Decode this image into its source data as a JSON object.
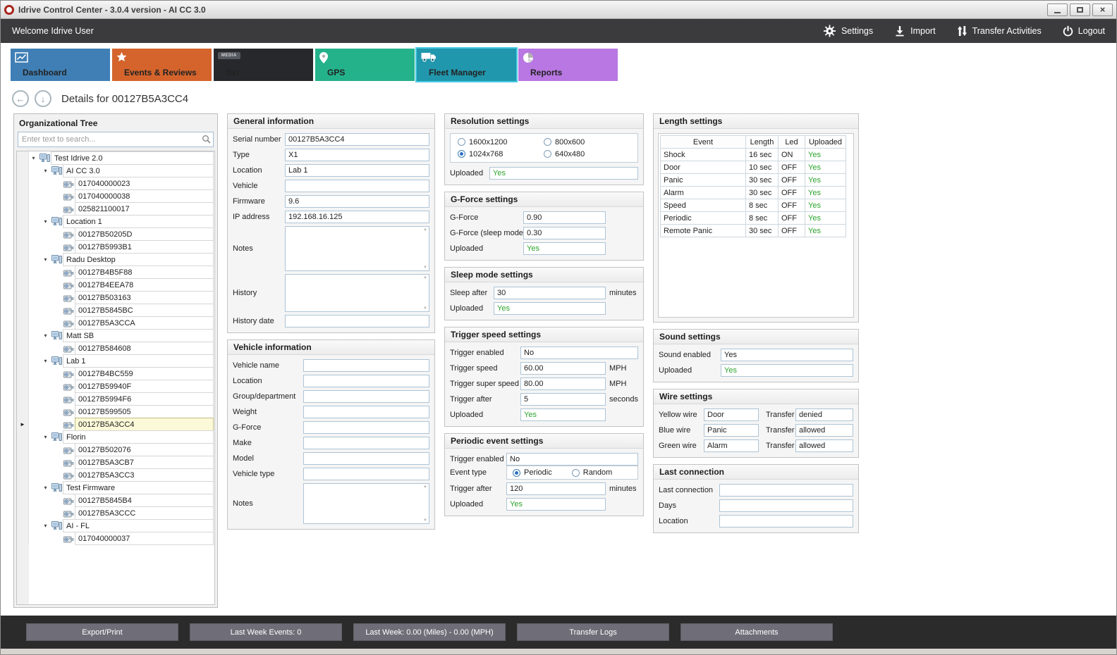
{
  "window": {
    "title": "Idrive Control Center - 3.0.4 version - AI CC 3.0",
    "close_glyph": "×"
  },
  "menubar": {
    "welcome": "Welcome Idrive User",
    "actions": [
      {
        "id": "settings",
        "label": "Settings"
      },
      {
        "id": "import",
        "label": "Import"
      },
      {
        "id": "transfer-activities",
        "label": "Transfer Activities"
      },
      {
        "id": "logout",
        "label": "Logout"
      }
    ]
  },
  "tabs": [
    {
      "id": "dashboard",
      "label": "Dashboard",
      "color": "#3f7fb5",
      "selected": false
    },
    {
      "id": "events-reviews",
      "label": "Events & Reviews",
      "color": "#d4642c",
      "selected": false
    },
    {
      "id": "dvr",
      "label": "Dvr",
      "color": "#26282c",
      "selected": false,
      "logo_text": "MEDIA"
    },
    {
      "id": "gps",
      "label": "GPS",
      "color": "#24b28b",
      "selected": false
    },
    {
      "id": "fleet-manager",
      "label": "Fleet Manager",
      "color": "#2197ad",
      "selected": true
    },
    {
      "id": "reports",
      "label": "Reports",
      "color": "#b877e2",
      "selected": false
    }
  ],
  "details_header": {
    "title": "Details for 00127B5A3CC4"
  },
  "org_tree": {
    "title": "Organizational Tree",
    "search_placeholder": "Enter text to search...",
    "nodes": [
      {
        "label": "Test Idrive 2.0",
        "level": 0,
        "type": "group"
      },
      {
        "label": "AI CC 3.0",
        "level": 1,
        "type": "group"
      },
      {
        "label": "017040000023",
        "level": 2,
        "type": "device"
      },
      {
        "label": "017040000038",
        "level": 2,
        "type": "device"
      },
      {
        "label": "025821100017",
        "level": 2,
        "type": "device"
      },
      {
        "label": "Location 1",
        "level": 1,
        "type": "group"
      },
      {
        "label": "00127B50205D",
        "level": 2,
        "type": "device"
      },
      {
        "label": "00127B5993B1",
        "level": 2,
        "type": "device"
      },
      {
        "label": "Radu Desktop",
        "level": 1,
        "type": "group"
      },
      {
        "label": "00127B4B5F88",
        "level": 2,
        "type": "device"
      },
      {
        "label": "00127B4EEA78",
        "level": 2,
        "type": "device"
      },
      {
        "label": "00127B503163",
        "level": 2,
        "type": "device"
      },
      {
        "label": "00127B5845BC",
        "level": 2,
        "type": "device"
      },
      {
        "label": "00127B5A3CCA",
        "level": 2,
        "type": "device"
      },
      {
        "label": "Matt SB",
        "level": 1,
        "type": "group"
      },
      {
        "label": "00127B584608",
        "level": 2,
        "type": "device"
      },
      {
        "label": "Lab 1",
        "level": 1,
        "type": "group"
      },
      {
        "label": "00127B4BC559",
        "level": 2,
        "type": "device"
      },
      {
        "label": "00127B59940F",
        "level": 2,
        "type": "device"
      },
      {
        "label": "00127B5994F6",
        "level": 2,
        "type": "device"
      },
      {
        "label": "00127B599505",
        "level": 2,
        "type": "device"
      },
      {
        "label": "00127B5A3CC4",
        "level": 2,
        "type": "device",
        "selected": true
      },
      {
        "label": "Florin",
        "level": 1,
        "type": "group"
      },
      {
        "label": "00127B502076",
        "level": 2,
        "type": "device"
      },
      {
        "label": "00127B5A3CB7",
        "level": 2,
        "type": "device"
      },
      {
        "label": "00127B5A3CC3",
        "level": 2,
        "type": "device"
      },
      {
        "label": "Test Firmware",
        "level": 1,
        "type": "group"
      },
      {
        "label": "00127B5845B4",
        "level": 2,
        "type": "device"
      },
      {
        "label": "00127B5A3CCC",
        "level": 2,
        "type": "device"
      },
      {
        "label": "AI - FL",
        "level": 1,
        "type": "group"
      },
      {
        "label": "017040000037",
        "level": 2,
        "type": "device"
      }
    ]
  },
  "general_information": {
    "title": "General information",
    "fields": [
      {
        "label": "Serial number",
        "value": "00127B5A3CC4"
      },
      {
        "label": "Type",
        "value": "X1"
      },
      {
        "label": "Location",
        "value": "Lab 1"
      },
      {
        "label": "Vehicle",
        "value": ""
      },
      {
        "label": "Firmware",
        "value": "9.6"
      },
      {
        "label": "IP address",
        "value": "192.168.16.125"
      },
      {
        "label": "Notes",
        "value": "",
        "multiline": true
      },
      {
        "label": "History",
        "value": "",
        "multiline": true
      },
      {
        "label": "History date",
        "value": ""
      }
    ]
  },
  "vehicle_information": {
    "title": "Vehicle information",
    "fields": [
      {
        "label": "Vehicle name",
        "value": ""
      },
      {
        "label": "Location",
        "value": ""
      },
      {
        "label": "Group/department",
        "value": ""
      },
      {
        "label": "Weight",
        "value": ""
      },
      {
        "label": "G-Force",
        "value": ""
      },
      {
        "label": "Make",
        "value": ""
      },
      {
        "label": "Model",
        "value": ""
      },
      {
        "label": "Vehicle type",
        "value": ""
      },
      {
        "label": "Notes",
        "value": "",
        "multiline": true
      }
    ]
  },
  "resolution_settings": {
    "title": "Resolution settings",
    "options": [
      {
        "label": "1600x1200",
        "selected": false
      },
      {
        "label": "800x600",
        "selected": false
      },
      {
        "label": "1024x768",
        "selected": true
      },
      {
        "label": "640x480",
        "selected": false
      }
    ],
    "fields": [
      {
        "label": "Uploaded",
        "value": "Yes",
        "green": true
      }
    ]
  },
  "gforce_settings": {
    "title": "G-Force settings",
    "fields": [
      {
        "label": "G-Force",
        "value": "0.90"
      },
      {
        "label": "G-Force (sleep mode)",
        "value": "0.30"
      },
      {
        "label": "Uploaded",
        "value": "Yes",
        "green": true
      }
    ]
  },
  "sleep_mode_settings": {
    "title": "Sleep mode settings",
    "fields": [
      {
        "label": "Sleep after",
        "value": "30",
        "suffix": "minutes"
      },
      {
        "label": "Uploaded",
        "value": "Yes",
        "green": true
      }
    ]
  },
  "trigger_speed_settings": {
    "title": "Trigger speed settings",
    "fields": [
      {
        "label": "Trigger enabled",
        "value": "No"
      },
      {
        "label": "Trigger speed",
        "value": "60.00",
        "suffix": "MPH"
      },
      {
        "label": "Trigger super speed",
        "value": "80.00",
        "suffix": "MPH"
      },
      {
        "label": "Trigger after",
        "value": "5",
        "suffix": "seconds"
      },
      {
        "label": "Uploaded",
        "value": "Yes",
        "green": true
      }
    ]
  },
  "periodic_event_settings": {
    "title": "Periodic event settings",
    "fields_top": [
      {
        "label": "Trigger enabled",
        "value": "No"
      }
    ],
    "event_type": {
      "label": "Event type",
      "options": [
        {
          "label": "Periodic",
          "selected": true
        },
        {
          "label": "Random",
          "selected": false
        }
      ]
    },
    "fields_bottom": [
      {
        "label": "Trigger after",
        "value": "120",
        "suffix": "minutes"
      },
      {
        "label": "Uploaded",
        "value": "Yes",
        "green": true
      }
    ]
  },
  "length_settings": {
    "title": "Length settings",
    "columns": [
      "Event",
      "Length",
      "Led",
      "Uploaded"
    ],
    "rows": [
      [
        "Shock",
        "16 sec",
        "ON",
        "Yes"
      ],
      [
        "Door",
        "10 sec",
        "OFF",
        "Yes"
      ],
      [
        "Panic",
        "30 sec",
        "OFF",
        "Yes"
      ],
      [
        "Alarm",
        "30 sec",
        "OFF",
        "Yes"
      ],
      [
        "Speed",
        "8 sec",
        "OFF",
        "Yes"
      ],
      [
        "Periodic",
        "8 sec",
        "OFF",
        "Yes"
      ],
      [
        "Remote Panic",
        "30 sec",
        "OFF",
        "Yes"
      ]
    ]
  },
  "sound_settings": {
    "title": "Sound settings",
    "fields": [
      {
        "label": "Sound enabled",
        "value": "Yes"
      },
      {
        "label": "Uploaded",
        "value": "Yes",
        "green": true
      }
    ]
  },
  "wire_settings": {
    "title": "Wire settings",
    "rows": [
      {
        "label": "Yellow wire",
        "value": "Door",
        "transfer_label": "Transfer",
        "transfer_value": "denied"
      },
      {
        "label": "Blue wire",
        "value": "Panic",
        "transfer_label": "Transfer",
        "transfer_value": "allowed"
      },
      {
        "label": "Green wire",
        "value": "Alarm",
        "transfer_label": "Transfer",
        "transfer_value": "allowed"
      }
    ]
  },
  "last_connection": {
    "title": "Last connection",
    "fields": [
      {
        "label": "Last connection",
        "value": ""
      },
      {
        "label": "Days",
        "value": ""
      },
      {
        "label": "Location",
        "value": ""
      }
    ]
  },
  "bottom_bar": {
    "buttons": [
      "Export/Print",
      "Last Week Events: 0",
      "Last Week: 0.00 (Miles) - 0.00 (MPH)",
      "Transfer Logs",
      "Attachments"
    ]
  }
}
